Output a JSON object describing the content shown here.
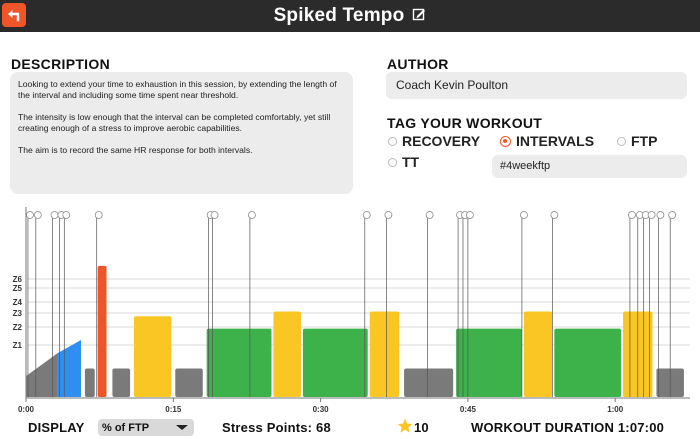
{
  "header": {
    "title": "Spiked Tempo",
    "back_icon": "back-arrow-icon",
    "edit_icon": "edit-icon"
  },
  "description": {
    "label": "DESCRIPTION",
    "paragraphs": [
      "Looking to extend your time to exhaustion in this session, by extending the length of the interval and including some time spent near threshold.",
      "The intensity is low enough that the interval can be completed comfortably, yet still creating enough of a stress to improve aerobic capabilities.",
      "The aim is to record the same HR response for both intervals."
    ]
  },
  "author": {
    "label": "AUTHOR",
    "value": "Coach Kevin Poulton"
  },
  "tags": {
    "label": "TAG YOUR WORKOUT",
    "options": [
      {
        "label": "RECOVERY",
        "selected": false
      },
      {
        "label": "INTERVALS",
        "selected": true
      },
      {
        "label": "FTP",
        "selected": false
      },
      {
        "label": "TT",
        "selected": false
      }
    ],
    "custom_tag": "#4weekftp"
  },
  "workout_chart": {
    "zone_labels": [
      "Z6",
      "Z5",
      "Z4",
      "Z3",
      "Z2",
      "Z1"
    ],
    "time_labels": [
      "0:00",
      "0:15",
      "0:30",
      "0:45",
      "1:00"
    ],
    "colors": {
      "gray": "#7a7a7a",
      "blue": "#2f8ff0",
      "green": "#3db14a",
      "yellow": "#f9c623",
      "orange": "#f0552a"
    },
    "blocks": [
      {
        "start": 0.0,
        "end": 3.2,
        "zone": "gray",
        "from": 0.22,
        "to": 0.46,
        "ramp": true
      },
      {
        "start": 3.2,
        "end": 5.6,
        "zone": "blue",
        "from": 0.46,
        "to": 0.6,
        "ramp": true
      },
      {
        "start": 6.0,
        "end": 7.0,
        "zone": "gray",
        "from": 0.3,
        "to": 0.3,
        "ramp": false
      },
      {
        "start": 7.3,
        "end": 8.2,
        "zone": "orange",
        "from": 1.38,
        "to": 1.38,
        "ramp": false
      },
      {
        "start": 8.8,
        "end": 10.6,
        "zone": "gray",
        "from": 0.3,
        "to": 0.3,
        "ramp": false
      },
      {
        "start": 11.0,
        "end": 14.8,
        "zone": "yellow",
        "from": 0.85,
        "to": 0.85,
        "ramp": false
      },
      {
        "start": 15.2,
        "end": 18.0,
        "zone": "gray",
        "from": 0.3,
        "to": 0.3,
        "ramp": false
      },
      {
        "start": 18.4,
        "end": 25.0,
        "zone": "green",
        "from": 0.72,
        "to": 0.72,
        "ramp": false
      },
      {
        "start": 25.2,
        "end": 28.0,
        "zone": "yellow",
        "from": 0.9,
        "to": 0.9,
        "ramp": false
      },
      {
        "start": 28.2,
        "end": 34.8,
        "zone": "green",
        "from": 0.72,
        "to": 0.72,
        "ramp": false
      },
      {
        "start": 35.0,
        "end": 38.0,
        "zone": "yellow",
        "from": 0.9,
        "to": 0.9,
        "ramp": false
      },
      {
        "start": 38.5,
        "end": 43.5,
        "zone": "gray",
        "from": 0.3,
        "to": 0.3,
        "ramp": false
      },
      {
        "start": 43.8,
        "end": 50.5,
        "zone": "green",
        "from": 0.72,
        "to": 0.72,
        "ramp": false
      },
      {
        "start": 50.7,
        "end": 53.6,
        "zone": "yellow",
        "from": 0.9,
        "to": 0.9,
        "ramp": false
      },
      {
        "start": 53.8,
        "end": 60.6,
        "zone": "green",
        "from": 0.72,
        "to": 0.72,
        "ramp": false
      },
      {
        "start": 60.8,
        "end": 63.8,
        "zone": "yellow",
        "from": 0.9,
        "to": 0.9,
        "ramp": false
      },
      {
        "start": 64.2,
        "end": 67.0,
        "zone": "gray",
        "from": 0.3,
        "to": 0.3,
        "ramp": false
      }
    ],
    "markers": [
      0.2,
      1.0,
      2.7,
      3.4,
      3.9,
      7.2,
      18.6,
      19.0,
      22.8,
      34.5,
      36.7,
      40.9,
      44.0,
      44.5,
      45.0,
      50.5,
      53.6,
      61.5,
      62.3,
      62.9,
      63.5,
      64.4,
      65.6
    ]
  },
  "footer": {
    "display_label": "DISPLAY",
    "display_value": "% of FTP",
    "stress_points": "Stress Points: 68",
    "rating": "10",
    "duration": "WORKOUT DURATION 1:07:00"
  }
}
